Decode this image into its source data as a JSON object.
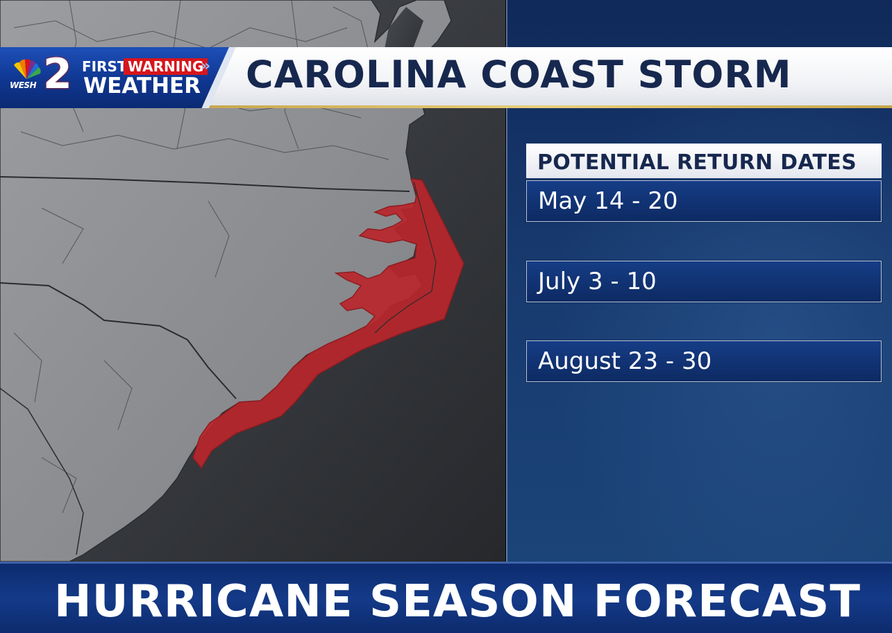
{
  "station": {
    "network_logo": "nbc-peacock-icon",
    "call_letters": "WESH",
    "channel": "2",
    "brand_first": "FIRST",
    "brand_warning": "WARNING",
    "brand_weather": "WEATHER",
    "brand_chevron": "»"
  },
  "header": {
    "title": "CAROLINA COAST STORM"
  },
  "map": {
    "region": "Carolina coast",
    "highlight_color": "#b8262b"
  },
  "dates": {
    "title": "POTENTIAL RETURN DATES",
    "items": [
      {
        "label": "May 14 - 20"
      },
      {
        "label": "July 3 - 10"
      },
      {
        "label": "August 23 - 30"
      }
    ]
  },
  "banner": {
    "text": "HURRICANE SEASON FORECAST"
  },
  "colors": {
    "navy": "#0d2b6e",
    "title_text": "#17284f",
    "warning_red": "#d6161c",
    "gold": "#c8a54a"
  }
}
